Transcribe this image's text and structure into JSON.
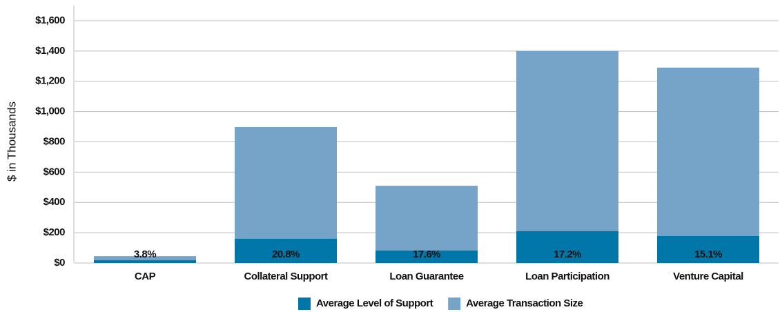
{
  "chart_data": {
    "type": "bar",
    "y_axis_label": "$ in Thousands",
    "categories": [
      "CAP",
      "Collateral Support",
      "Loan Guarantee",
      "Loan Participation",
      "Venture Capital"
    ],
    "series": [
      {
        "name": "Average Transaction Size",
        "color": "#76a3c8",
        "values": [
          45,
          898,
          510,
          1400,
          1290
        ]
      },
      {
        "name": "Average Level of Support",
        "color": "#0077a8",
        "values": [
          18,
          160,
          82,
          210,
          178
        ]
      }
    ],
    "annotations": [
      "3.8%",
      "20.8%",
      "17.6%",
      "17.2%",
      "15.1%"
    ],
    "legend_order": [
      "Average Level of Support",
      "Average Transaction Size"
    ],
    "ylim": [
      0,
      1600
    ],
    "yticks": [
      {
        "value": 0,
        "label": "$0"
      },
      {
        "value": 200,
        "label": "$200"
      },
      {
        "value": 400,
        "label": "$400"
      },
      {
        "value": 600,
        "label": "$600"
      },
      {
        "value": 800,
        "label": "$800"
      },
      {
        "value": 1000,
        "label": "$1,000"
      },
      {
        "value": 1200,
        "label": "$1,200"
      },
      {
        "value": 1400,
        "label": "$1,400"
      },
      {
        "value": 1600,
        "label": "$1,600"
      }
    ],
    "grid": true
  }
}
